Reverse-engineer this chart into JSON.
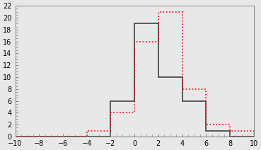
{
  "xlim": [
    -10,
    10
  ],
  "ylim": [
    0,
    22
  ],
  "xticks": [
    -10,
    -8,
    -6,
    -4,
    -2,
    0,
    2,
    4,
    6,
    8,
    10
  ],
  "yticks": [
    0,
    2,
    4,
    6,
    8,
    10,
    12,
    14,
    16,
    18,
    20,
    22
  ],
  "bin_edges": [
    -10,
    -8,
    -6,
    -4,
    -2,
    0,
    2,
    4,
    6,
    8,
    10
  ],
  "black_values": [
    0,
    0,
    0,
    0,
    6,
    19,
    10,
    6,
    1,
    0
  ],
  "red_values": [
    0,
    0,
    0,
    1,
    4,
    16,
    21,
    8,
    2,
    1
  ],
  "black_color": "#404040",
  "red_color": "#ff0000",
  "bg_color": "#e8e8e8",
  "linewidth_black": 1.2,
  "linewidth_red": 1.2,
  "tick_fontsize": 7
}
